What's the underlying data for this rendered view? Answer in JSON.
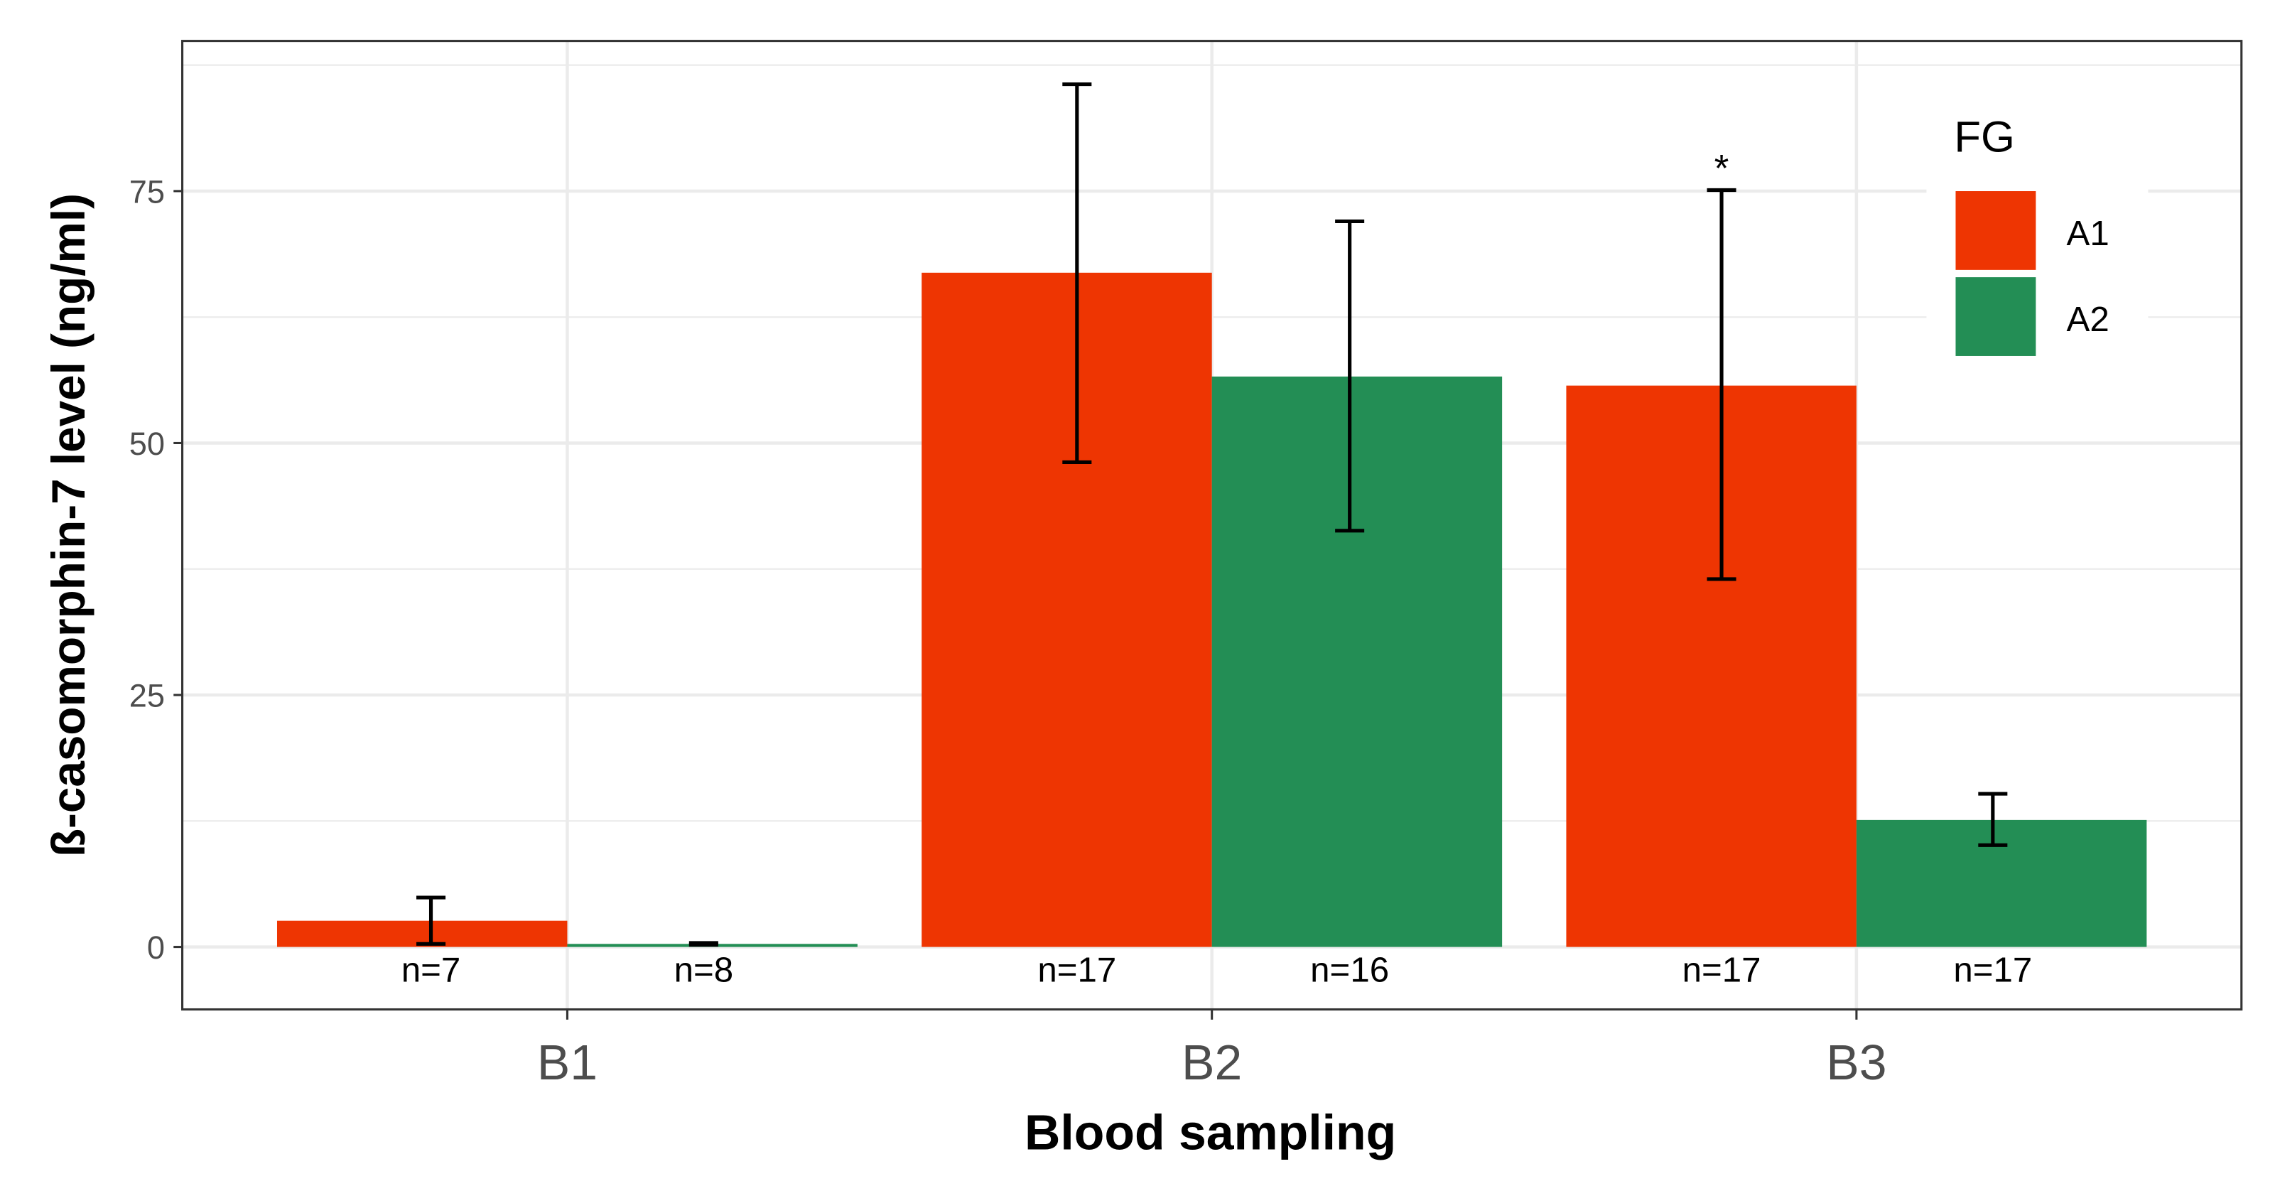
{
  "chart_data": {
    "type": "bar",
    "title": "",
    "xlabel": "Blood sampling",
    "ylabel": "ß-casomorphin-7 level (ng/ml)",
    "categories": [
      "B1",
      "B2",
      "B3"
    ],
    "ylim": [
      -6.2,
      89.9
    ],
    "yticks": [
      0,
      25,
      50,
      75
    ],
    "grid": true,
    "legend": {
      "title": "FG",
      "placement": "top-right"
    },
    "series": [
      {
        "name": "A1",
        "color": "#EE3502",
        "values": [
          2.6,
          66.9,
          55.7
        ],
        "err_low": [
          0.3,
          48.1,
          36.5
        ],
        "err_high": [
          4.9,
          85.6,
          75.1
        ],
        "n_labels": [
          "n=7",
          "n=17",
          "n=17"
        ]
      },
      {
        "name": "A2",
        "color": "#238E55",
        "values": [
          0.3,
          56.6,
          12.6
        ],
        "err_low": [
          0.2,
          41.3,
          10.1
        ],
        "err_high": [
          0.4,
          72.0,
          15.2
        ],
        "n_labels": [
          "n=8",
          "n=16",
          "n=17"
        ]
      }
    ],
    "annotations": [
      {
        "text": "*",
        "category": "B3",
        "series": "A1"
      }
    ]
  }
}
